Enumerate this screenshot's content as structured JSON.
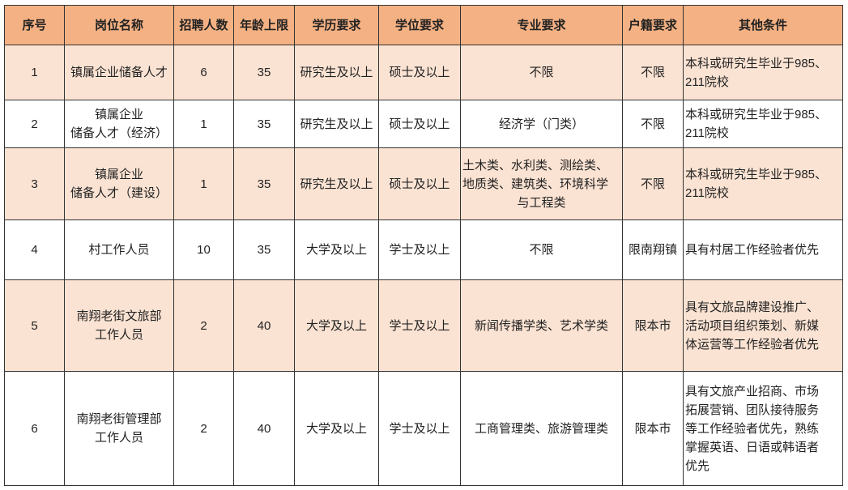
{
  "table": {
    "headers": [
      "序号",
      "岗位名称",
      "招聘人数",
      "年龄上限",
      "学历要求",
      "学位要求",
      "专业要求",
      "户籍要求",
      "其他条件"
    ],
    "rows": [
      [
        "1",
        "镇属企业储备人才",
        "6",
        "35",
        "研究生及以上",
        "硕士及以上",
        "不限",
        "不限",
        "本科或研究生毕业于985、\n211院校"
      ],
      [
        "2",
        "镇属企业\n储备人才（经济）",
        "1",
        "35",
        "研究生及以上",
        "硕士及以上",
        "经济学（门类）",
        "不限",
        "本科或研究生毕业于985、\n211院校"
      ],
      [
        "3",
        "镇属企业\n储备人才（建设）",
        "1",
        "35",
        "研究生及以上",
        "硕士及以上",
        "土木类、水利类、测绘类、\n地质类、建筑类、环境科学\n与工程类",
        "不限",
        "本科或研究生毕业于985、\n211院校"
      ],
      [
        "4",
        "村工作人员",
        "10",
        "35",
        "大学及以上",
        "学士及以上",
        "不限",
        "限南翔镇",
        "具有村居工作经验者优先"
      ],
      [
        "5",
        "南翔老街文旅部\n工作人员",
        "2",
        "40",
        "大学及以上",
        "学士及以上",
        "新闻传播学类、艺术学类",
        "限本市",
        "具有文旅品牌建设推广、\n活动项目组织策划、新媒\n体运营等工作经验者优先"
      ],
      [
        "6",
        "南翔老街管理部\n工作人员",
        "2",
        "40",
        "大学及以上",
        "学士及以上",
        "工商管理类、旅游管理类",
        "限本市",
        "具有文旅产业招商、市场\n拓展营销、团队接待服务\n等工作经验者优先，熟练\n掌握英语、日语或韩语者\n优先"
      ]
    ]
  },
  "colors": {
    "header_bg": "#F4B183",
    "odd_row_bg": "#FBE3D3",
    "border": "#333333"
  }
}
